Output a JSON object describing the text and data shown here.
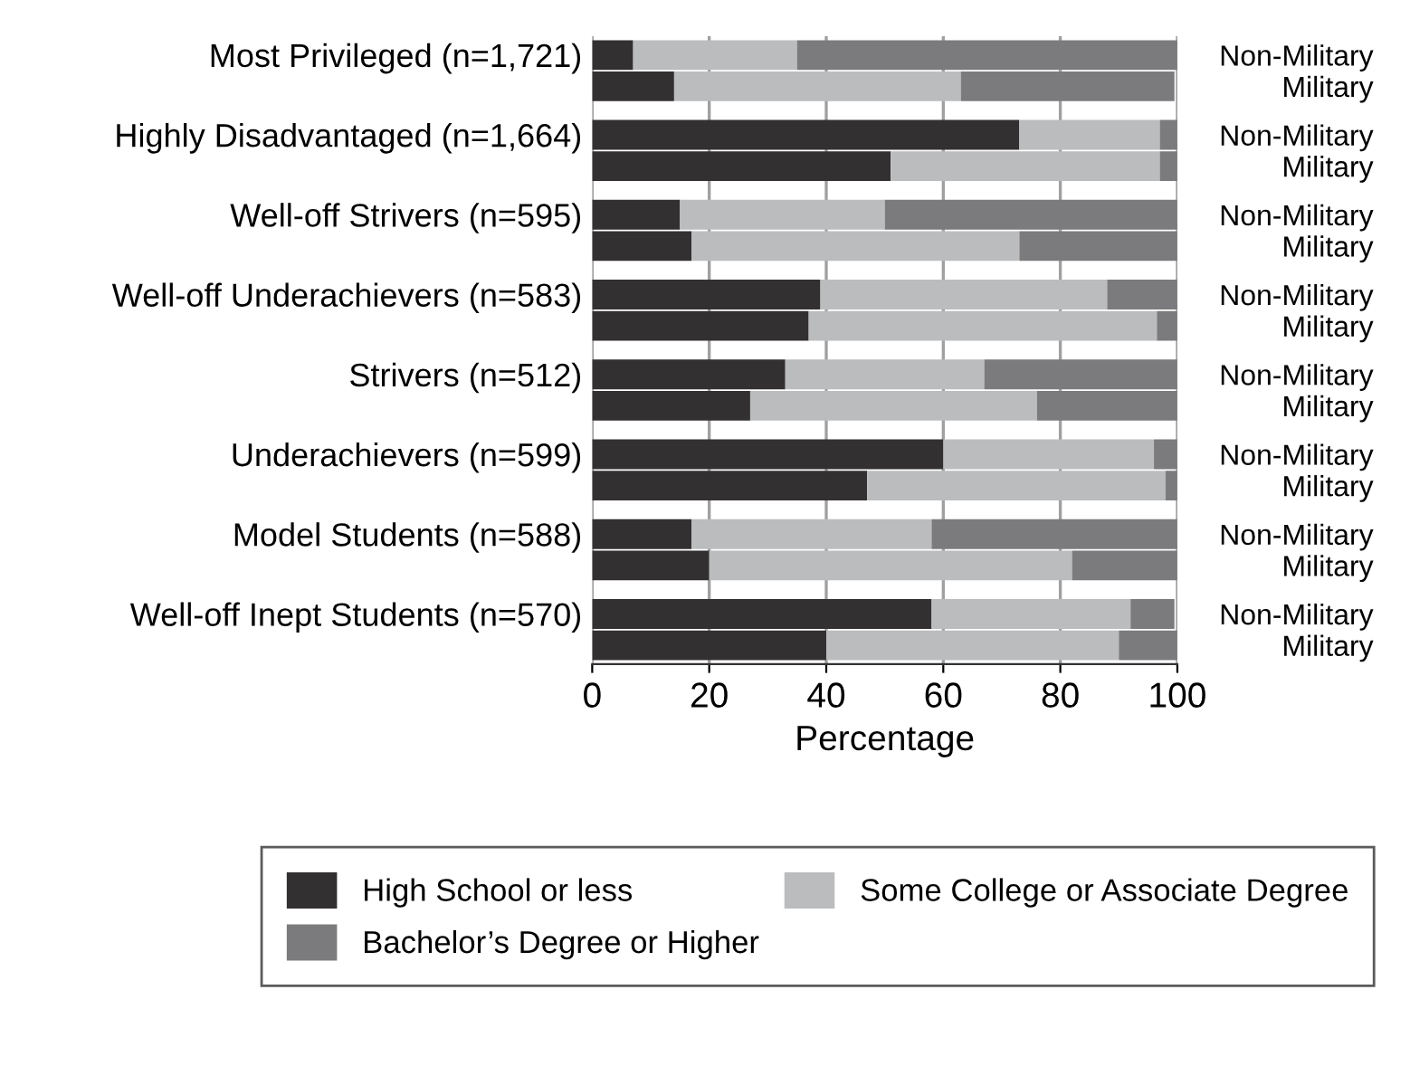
{
  "chart_data": {
    "type": "bar",
    "orientation": "horizontal",
    "stacked": true,
    "categories": [
      "Most Privileged (n=1,721)",
      null,
      "Highly Disadvantaged (n=1,664)",
      null,
      "Well-off Strivers (n=595)",
      null,
      "Well-off Underachievers (n=583)",
      null,
      "Strivers (n=512)",
      null,
      "Underachievers (n=599)",
      null,
      "Model Students (n=588)",
      null,
      "Well-off Inept Students (n=570)",
      null
    ],
    "y2_categories": [
      "Non-Military",
      "Military",
      "Non-Military",
      "Military",
      "Non-Military",
      "Military",
      "Non-Military",
      "Military",
      "Non-Military",
      "Military",
      "Non-Military",
      "Military",
      "Non-Military",
      "Military",
      "Non-Military",
      "Military"
    ],
    "series": [
      {
        "name": "High School or less",
        "color": "#323031",
        "values": [
          7,
          14,
          73,
          51,
          15,
          17,
          39,
          37,
          33,
          27,
          60,
          47,
          17,
          20,
          58,
          40
        ]
      },
      {
        "name": "Some College or Associate Degree",
        "color": "#bbbcbd",
        "values": [
          28,
          49,
          24,
          46,
          35,
          56,
          49,
          59.5,
          34,
          49,
          36,
          51,
          41,
          62,
          34,
          50
        ]
      },
      {
        "name": "Bachelor’s Degree or Higher",
        "color": "#7b7b7d",
        "values": [
          65,
          36.5,
          3,
          3,
          50,
          27,
          12,
          3.5,
          33,
          24,
          4,
          2,
          42,
          18,
          7.5,
          10
        ]
      }
    ],
    "xlabel": "Percentage",
    "xlim": [
      0,
      100
    ],
    "xticks": [
      0,
      20,
      40,
      60,
      80,
      100
    ],
    "grid": "x",
    "legend": "bottom"
  }
}
